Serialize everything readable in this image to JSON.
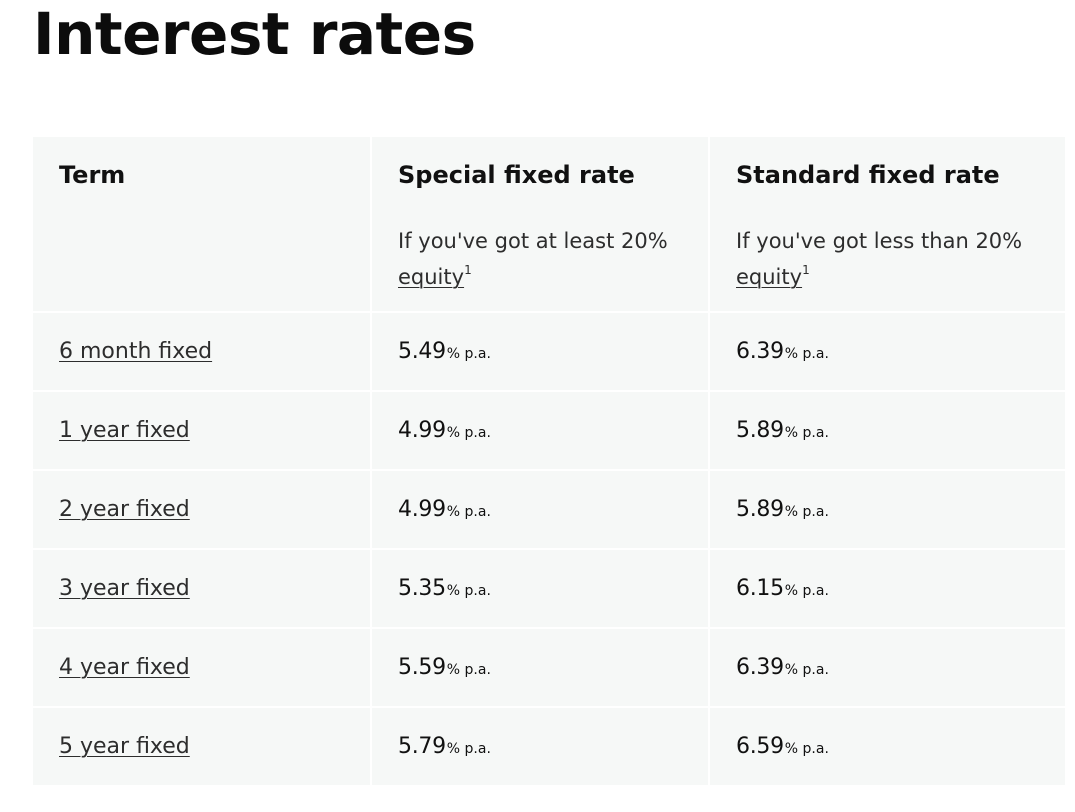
{
  "page": {
    "title": "Interest rates"
  },
  "table": {
    "headers": [
      {
        "label": "Term",
        "note": null,
        "link": null,
        "sup": null
      },
      {
        "label": "Special fixed rate",
        "note": "If you've got at least 20%",
        "link": "equity",
        "sup": "1"
      },
      {
        "label": "Standard fixed rate",
        "note": "If you've got less than 20%",
        "link": "equity",
        "sup": "1"
      }
    ],
    "unit": "% p.a.",
    "rows": [
      {
        "term": "6 month fixed",
        "special": "5.49",
        "standard": "6.39"
      },
      {
        "term": "1 year fixed",
        "special": "4.99",
        "standard": "5.89"
      },
      {
        "term": "2 year fixed",
        "special": "4.99",
        "standard": "5.89"
      },
      {
        "term": "3 year fixed",
        "special": "5.35",
        "standard": "6.15"
      },
      {
        "term": "4 year fixed",
        "special": "5.59",
        "standard": "6.39"
      },
      {
        "term": "5 year fixed",
        "special": "5.79",
        "standard": "6.59"
      }
    ]
  }
}
